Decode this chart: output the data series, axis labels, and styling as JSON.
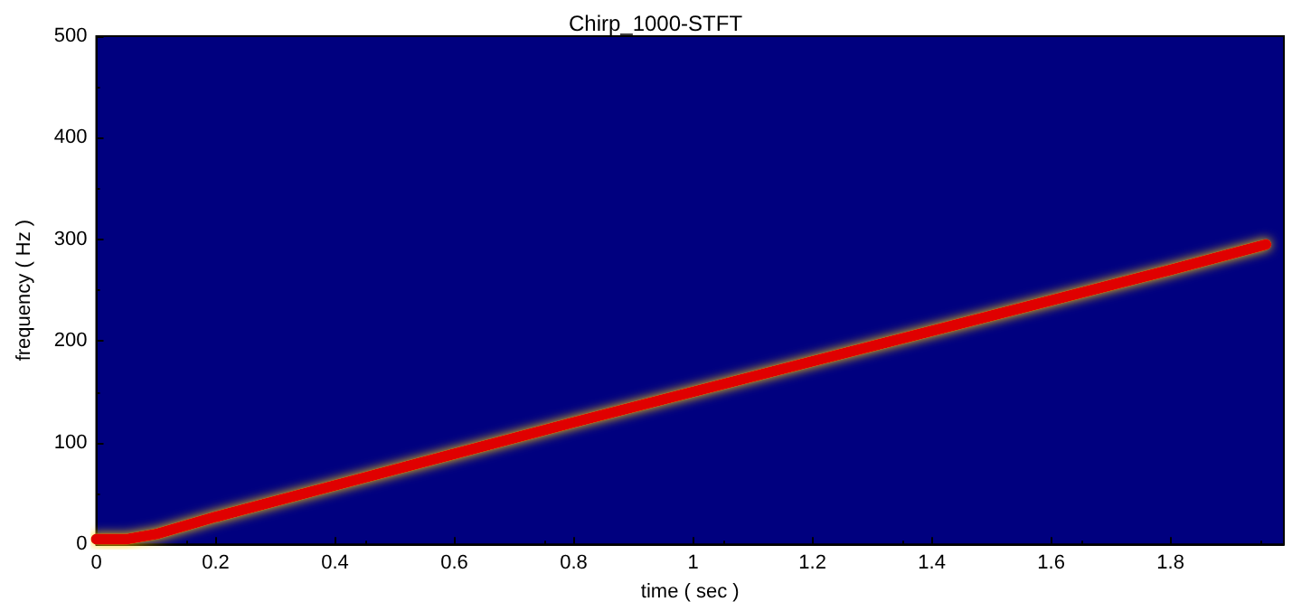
{
  "chart_data": {
    "type": "line",
    "title": "Chirp_1000-STFT",
    "xlabel": "time ( sec )",
    "ylabel": "frequency ( Hz )",
    "x": [
      0,
      0.05,
      0.1,
      0.2,
      0.4,
      0.6,
      0.8,
      1,
      1.2,
      1.4,
      1.6,
      1.8,
      1.96
    ],
    "series": [
      {
        "color": "#e00000",
        "values": [
          5,
          5,
          10,
          27,
          58,
          89,
          120,
          150,
          180,
          210,
          240,
          270,
          295
        ]
      }
    ],
    "xlim": [
      0,
      1.99
    ],
    "xticks": [
      0,
      0.2,
      0.4,
      0.6,
      0.8,
      1,
      1.2,
      1.4,
      1.6,
      1.8
    ],
    "ylim": [
      0,
      500
    ],
    "yticks": [
      0,
      100,
      200,
      300,
      400,
      500
    ],
    "grid": false
  }
}
